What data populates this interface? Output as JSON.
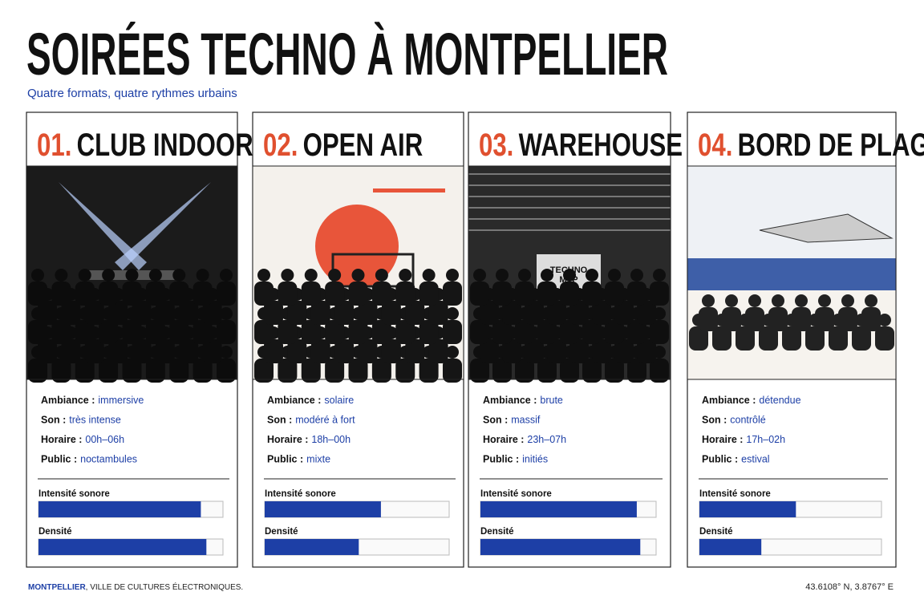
{
  "header": {
    "title": "SOIRÉES TECHNO À MONTPELLIER",
    "subtitle": "Quatre formats, quatre rythmes urbains"
  },
  "cards": [
    {
      "number": "01.",
      "title": "CLUB INDOOR",
      "fields": [
        {
          "label": "Ambiance :",
          "value": "immersive"
        },
        {
          "label": "Son :",
          "value": "très intense"
        },
        {
          "label": "Horaire :",
          "value": "00h–06h"
        },
        {
          "label": "Public :",
          "value": "noctambules"
        }
      ],
      "meters": [
        {
          "label": "Intensité sonore",
          "value": 0.88
        },
        {
          "label": "Densité",
          "value": 0.91
        }
      ]
    },
    {
      "number": "02.",
      "title": "OPEN AIR",
      "fields": [
        {
          "label": "Ambiance :",
          "value": "solaire"
        },
        {
          "label": "Son :",
          "value": "modéré à fort"
        },
        {
          "label": "Horaire :",
          "value": "18h–00h"
        },
        {
          "label": "Public :",
          "value": "mixte"
        }
      ],
      "meters": [
        {
          "label": "Intensité sonore",
          "value": 0.63
        },
        {
          "label": "Densité",
          "value": 0.51
        }
      ]
    },
    {
      "number": "03.",
      "title": "WAREHOUSE",
      "sign": [
        "TECHNO",
        "MTP"
      ],
      "fields": [
        {
          "label": "Ambiance :",
          "value": "brute"
        },
        {
          "label": "Son :",
          "value": "massif"
        },
        {
          "label": "Horaire :",
          "value": "23h–07h"
        },
        {
          "label": "Public :",
          "value": "initiés"
        }
      ],
      "meters": [
        {
          "label": "Intensité sonore",
          "value": 0.89
        },
        {
          "label": "Densité",
          "value": 0.91
        }
      ]
    },
    {
      "number": "04.",
      "title": "BORD DE PLAGE",
      "fields": [
        {
          "label": "Ambiance :",
          "value": "détendue"
        },
        {
          "label": "Son :",
          "value": "contrôlé"
        },
        {
          "label": "Horaire :",
          "value": "17h–02h"
        },
        {
          "label": "Public :",
          "value": "estival"
        }
      ],
      "meters": [
        {
          "label": "Intensité sonore",
          "value": 0.53
        },
        {
          "label": "Densité",
          "value": 0.34
        }
      ]
    }
  ],
  "footer": {
    "city": "MONTPELLIER",
    "tagline": ", VILLE DE CULTURES ÉLECTRONIQUES.",
    "coordinates": "43.6108° N, 3.8767° E"
  }
}
